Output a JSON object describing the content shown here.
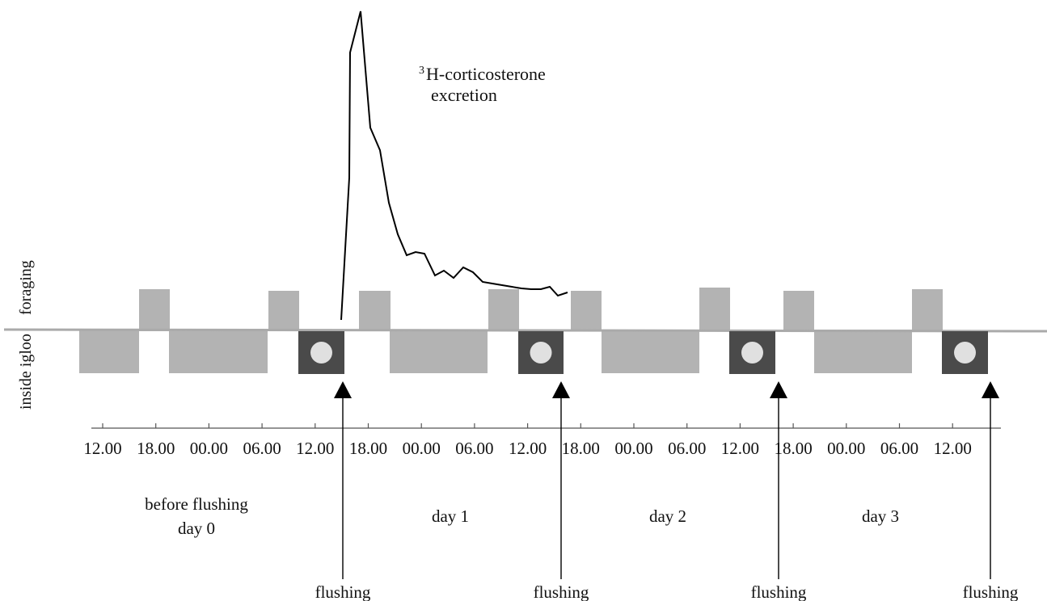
{
  "colors": {
    "activity_block": "#b3b3b3",
    "baseline": "#aaaaaa",
    "sample_box": "#4a4a4a",
    "sample_dot": "#e0e0e0",
    "curve": "#000000",
    "axis": "#555555",
    "text": "#111111"
  },
  "ylabel": {
    "inside": "inside igloo",
    "foraging": "foraging"
  },
  "annotation": {
    "superscript": "3",
    "line1": "H-corticosterone",
    "line2": "excretion"
  },
  "time_ticks": [
    "12.00",
    "18.00",
    "00.00",
    "06.00",
    "12.00",
    "18.00",
    "00.00",
    "06.00",
    "12.00",
    "18.00",
    "00.00",
    "06.00",
    "12.00",
    "18.00",
    "00.00",
    "06.00",
    "12.00"
  ],
  "periods": [
    {
      "line1": "before flushing",
      "line2": "day 0"
    },
    {
      "line1": "day 1",
      "line2": ""
    },
    {
      "line1": "day 2",
      "line2": ""
    },
    {
      "line1": "day 3",
      "line2": ""
    }
  ],
  "flush_label": "flushing",
  "flush_count": 4,
  "icons": {
    "sample_box": "sample-collection-icon",
    "arrow": "arrow-up-icon"
  }
}
